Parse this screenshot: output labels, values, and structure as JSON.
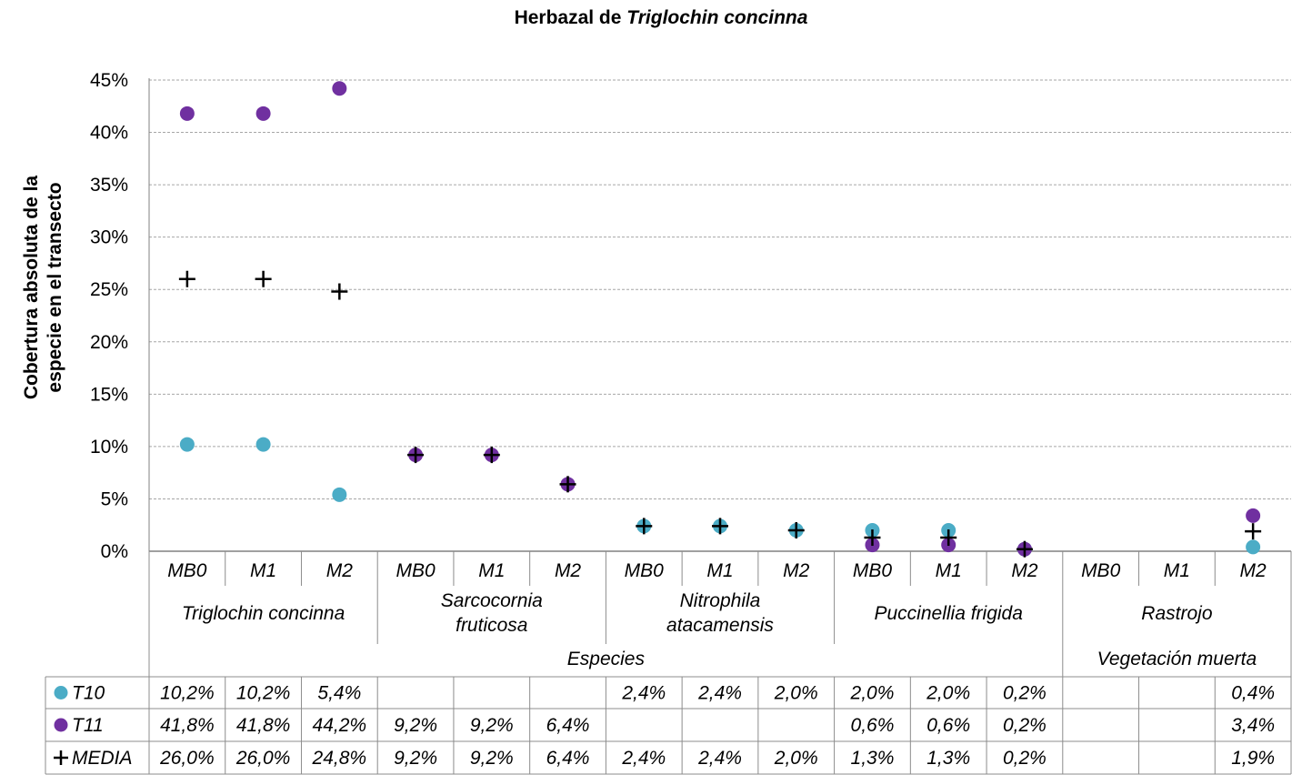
{
  "chart_data": {
    "type": "scatter",
    "title_prefix": "Herbazal de ",
    "title_italic": "Triglochin  concinna",
    "ylabel_line1": "Cobertura absoluta de la",
    "ylabel_line2": "especie en el transecto",
    "ylim": [
      0,
      45
    ],
    "yticks": [
      "0%",
      "5%",
      "10%",
      "15%",
      "20%",
      "25%",
      "30%",
      "35%",
      "40%",
      "45%"
    ],
    "grid": true,
    "categories": [
      "MB0",
      "M1",
      "M2",
      "MB0",
      "M1",
      "M2",
      "MB0",
      "M1",
      "M2",
      "MB0",
      "M1",
      "M2",
      "MB0",
      "M1",
      "M2"
    ],
    "species_groups": [
      {
        "lines": [
          "Triglochin concinna"
        ],
        "span": 3
      },
      {
        "lines": [
          "Sarcocornia",
          "fruticosa"
        ],
        "span": 3
      },
      {
        "lines": [
          "Nitrophila",
          "atacamensis"
        ],
        "span": 3
      },
      {
        "lines": [
          "Puccinellia frigida"
        ],
        "span": 3
      },
      {
        "lines": [
          "Rastrojo"
        ],
        "span": 3
      }
    ],
    "top_groups": [
      {
        "label": "Especies",
        "span": 12
      },
      {
        "label": "Vegetación muerta",
        "span": 3
      }
    ],
    "series": [
      {
        "name": "T10",
        "marker": "circle",
        "color": "#4BACC6",
        "values": [
          10.2,
          10.2,
          5.4,
          null,
          null,
          null,
          2.4,
          2.4,
          2.0,
          2.0,
          2.0,
          0.2,
          null,
          null,
          0.4
        ],
        "labels": [
          "10,2%",
          "10,2%",
          "5,4%",
          "",
          "",
          "",
          "2,4%",
          "2,4%",
          "2,0%",
          "2,0%",
          "2,0%",
          "0,2%",
          "",
          "",
          "0,4%"
        ]
      },
      {
        "name": "T11",
        "marker": "circle",
        "color": "#7030A0",
        "values": [
          41.8,
          41.8,
          44.2,
          9.2,
          9.2,
          6.4,
          null,
          null,
          null,
          0.6,
          0.6,
          0.2,
          null,
          null,
          3.4
        ],
        "labels": [
          "41,8%",
          "41,8%",
          "44,2%",
          "9,2%",
          "9,2%",
          "6,4%",
          "",
          "",
          "",
          "0,6%",
          "0,6%",
          "0,2%",
          "",
          "",
          "3,4%"
        ]
      },
      {
        "name": "MEDIA",
        "marker": "plus",
        "color": "#000000",
        "values": [
          26.0,
          26.0,
          24.8,
          9.2,
          9.2,
          6.4,
          2.4,
          2.4,
          2.0,
          1.3,
          1.3,
          0.2,
          null,
          null,
          1.9
        ],
        "labels": [
          "26,0%",
          "26,0%",
          "24,8%",
          "9,2%",
          "9,2%",
          "6,4%",
          "2,4%",
          "2,4%",
          "2,0%",
          "1,3%",
          "1,3%",
          "0,2%",
          "",
          "",
          "1,9%"
        ]
      }
    ]
  }
}
